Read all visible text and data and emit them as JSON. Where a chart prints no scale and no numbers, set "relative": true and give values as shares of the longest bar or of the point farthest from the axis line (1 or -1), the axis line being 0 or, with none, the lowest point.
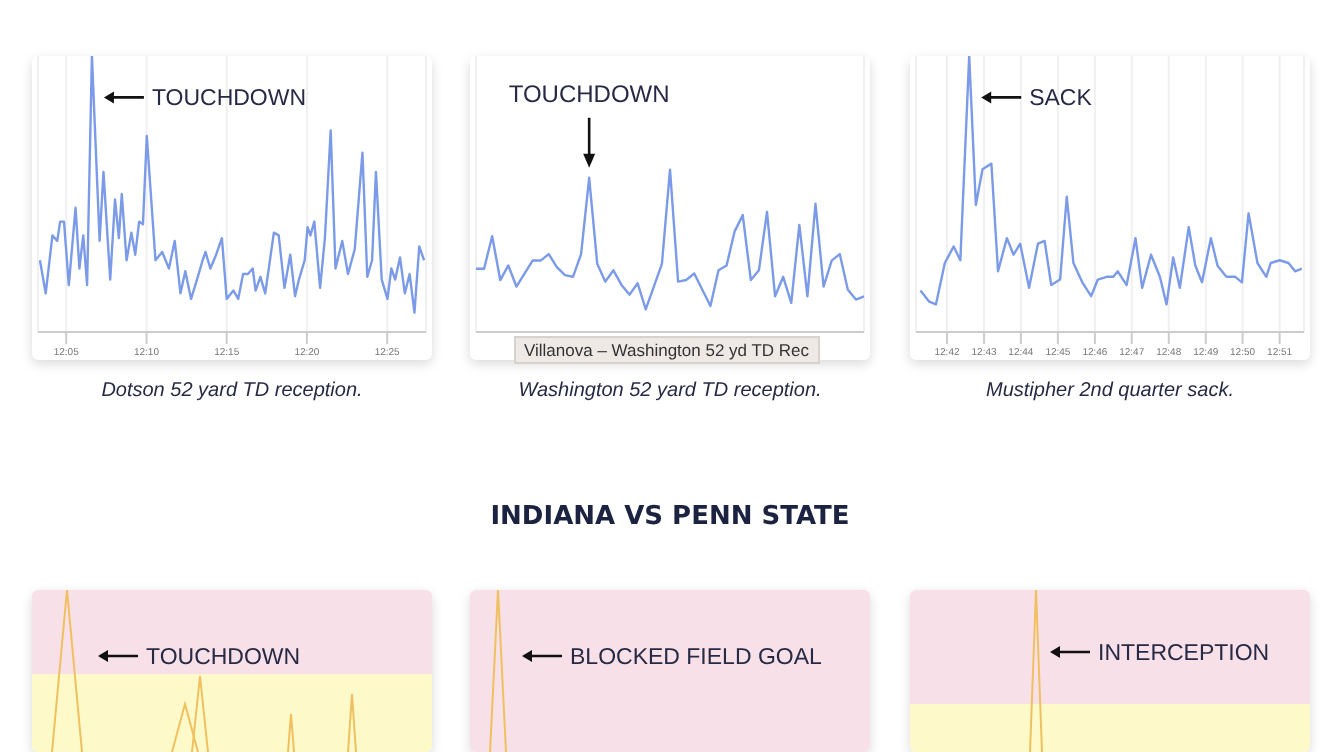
{
  "chart_data": [
    {
      "type": "line",
      "relative": true,
      "title": "Dotson 52 yard TD reception.",
      "color": "#7b9be8",
      "grid": "x",
      "x": [
        12.056,
        12.062,
        12.069,
        12.074,
        12.077,
        12.081,
        12.086,
        12.093,
        12.097,
        12.101,
        12.105,
        12.11,
        12.118,
        12.122,
        12.129,
        12.134,
        12.138,
        12.141,
        12.146,
        12.151,
        12.155,
        12.159,
        12.163,
        12.167,
        12.176,
        12.183,
        12.19,
        12.196,
        12.202,
        12.207,
        12.213,
        12.22,
        12.225,
        12.228,
        12.233,
        12.239,
        12.245,
        12.25,
        12.257,
        12.262,
        12.267,
        12.272,
        12.277,
        12.28,
        12.285,
        12.29,
        12.299,
        12.304,
        12.31,
        12.316,
        12.321,
        12.325,
        12.331,
        12.334,
        12.337,
        12.341,
        12.347,
        12.352,
        12.358,
        12.363,
        12.37,
        12.376,
        12.383,
        12.391,
        12.396,
        12.401,
        12.405,
        12.411,
        12.417,
        12.421,
        12.425,
        12.43,
        12.435,
        12.44,
        12.445,
        12.45,
        12.455
      ],
      "values": [
        0.26,
        0.14,
        0.35,
        0.33,
        0.4,
        0.4,
        0.17,
        0.45,
        0.23,
        0.35,
        0.17,
        1,
        0.33,
        0.58,
        0.19,
        0.48,
        0.34,
        0.5,
        0.26,
        0.36,
        0.28,
        0.4,
        0.39,
        0.71,
        0.26,
        0.29,
        0.23,
        0.33,
        0.14,
        0.22,
        0.12,
        0.2,
        0.26,
        0.29,
        0.23,
        0.28,
        0.34,
        0.12,
        0.15,
        0.12,
        0.21,
        0.21,
        0.23,
        0.15,
        0.2,
        0.14,
        0.36,
        0.35,
        0.16,
        0.28,
        0.13,
        0.19,
        0.26,
        0.38,
        0.35,
        0.4,
        0.16,
        0.34,
        0.73,
        0.23,
        0.33,
        0.21,
        0.3,
        0.65,
        0.2,
        0.26,
        0.58,
        0.19,
        0.12,
        0.23,
        0.19,
        0.27,
        0.14,
        0.21,
        0.07,
        0.31,
        0.26
      ],
      "xlim": [
        12.054,
        12.457
      ],
      "xticks": [
        {
          "value": 12.0833,
          "label": "12:05"
        },
        {
          "value": 12.1667,
          "label": "12:10"
        },
        {
          "value": 12.25,
          "label": "12:15"
        },
        {
          "value": 12.3333,
          "label": "12:20"
        },
        {
          "value": 12.4167,
          "label": "12:25"
        }
      ],
      "tick_labels": "x",
      "annotations": [
        {
          "text": "TOUCHDOWN",
          "x": 12.11,
          "y": 0.85
        }
      ]
    },
    {
      "type": "line",
      "relative": true,
      "title": "Washington 52 yard TD reception.",
      "color": "#7b9be8",
      "grid": "x",
      "categories": [
        null,
        null,
        null,
        null,
        null,
        null,
        null,
        null,
        null,
        null,
        null,
        null,
        null,
        null,
        null,
        null,
        null,
        null,
        null,
        null,
        null,
        null,
        null,
        null,
        null,
        null,
        null,
        null,
        null,
        null,
        null,
        null,
        null,
        null,
        null,
        null,
        null,
        null,
        null,
        null,
        null,
        null,
        null,
        null,
        null,
        null,
        null,
        null,
        null
      ],
      "values": [
        0.39,
        0.39,
        0.59,
        0.32,
        0.41,
        0.28,
        0.36,
        0.44,
        0.44,
        0.48,
        0.4,
        0.35,
        0.34,
        0.48,
        0.95,
        0.42,
        0.31,
        0.38,
        0.29,
        0.23,
        0.3,
        0.14,
        0.28,
        0.42,
        1,
        0.31,
        0.32,
        0.36,
        0.26,
        0.16,
        0.38,
        0.41,
        0.62,
        0.72,
        0.32,
        0.38,
        0.74,
        0.22,
        0.34,
        0.18,
        0.66,
        0.22,
        0.79,
        0.28,
        0.44,
        0.48,
        0.26,
        0.2,
        0.22
      ],
      "tick_labels": false,
      "annotations": [
        {
          "text": "TOUCHDOWN",
          "y": 0.95
        },
        "Villanova – Washington 52 yd TD Rec"
      ]
    },
    {
      "type": "line",
      "relative": true,
      "title": "Mustipher 2nd quarter sack.",
      "color": "#7b9be8",
      "grid": "x",
      "x": [
        12.688,
        12.692,
        12.695,
        12.699,
        12.703,
        12.706,
        12.71,
        12.713,
        12.716,
        12.72,
        12.723,
        12.727,
        12.73,
        12.733,
        12.737,
        12.741,
        12.744,
        12.747,
        12.751,
        12.754,
        12.757,
        12.761,
        12.765,
        12.768,
        12.772,
        12.775,
        12.777,
        12.781,
        12.785,
        12.788,
        12.792,
        12.796,
        12.799,
        12.802,
        12.805,
        12.809,
        12.812,
        12.815,
        12.819,
        12.822,
        12.826,
        12.83,
        12.833,
        12.836,
        12.84,
        12.844,
        12.846,
        12.85,
        12.854,
        12.857,
        12.86
      ],
      "values": [
        0.15,
        0.11,
        0.1,
        0.25,
        0.31,
        0.26,
        1,
        0.46,
        0.59,
        0.61,
        0.22,
        0.34,
        0.28,
        0.32,
        0.16,
        0.32,
        0.33,
        0.17,
        0.19,
        0.49,
        0.25,
        0.18,
        0.13,
        0.19,
        0.2,
        0.2,
        0.22,
        0.17,
        0.34,
        0.16,
        0.28,
        0.2,
        0.1,
        0.27,
        0.16,
        0.38,
        0.24,
        0.18,
        0.34,
        0.24,
        0.2,
        0.2,
        0.18,
        0.43,
        0.25,
        0.2,
        0.25,
        0.26,
        0.25,
        0.22,
        0.23
      ],
      "xlim": [
        12.686,
        12.861
      ],
      "xticks": [
        {
          "value": 12.7,
          "label": "12:42"
        },
        {
          "value": 12.7167,
          "label": "12:43"
        },
        {
          "value": 12.7333,
          "label": "12:44"
        },
        {
          "value": 12.75,
          "label": "12:45"
        },
        {
          "value": 12.7667,
          "label": "12:46"
        },
        {
          "value": 12.7833,
          "label": "12:47"
        },
        {
          "value": 12.8,
          "label": "12:48"
        },
        {
          "value": 12.8167,
          "label": "12:49"
        },
        {
          "value": 12.8333,
          "label": "12:50"
        },
        {
          "value": 12.85,
          "label": "12:51"
        }
      ],
      "tick_labels": "x",
      "annotations": [
        {
          "text": "SACK",
          "x": 12.71,
          "y": 0.85
        }
      ]
    },
    {
      "type": "other",
      "annotations": [
        "TOUCHDOWN"
      ]
    },
    {
      "type": "other",
      "title": "INDIANA VS PENN STATE",
      "annotations": [
        "BLOCKED FIELD GOAL"
      ]
    },
    {
      "type": "other",
      "annotations": [
        "INTERCEPTION"
      ]
    }
  ]
}
